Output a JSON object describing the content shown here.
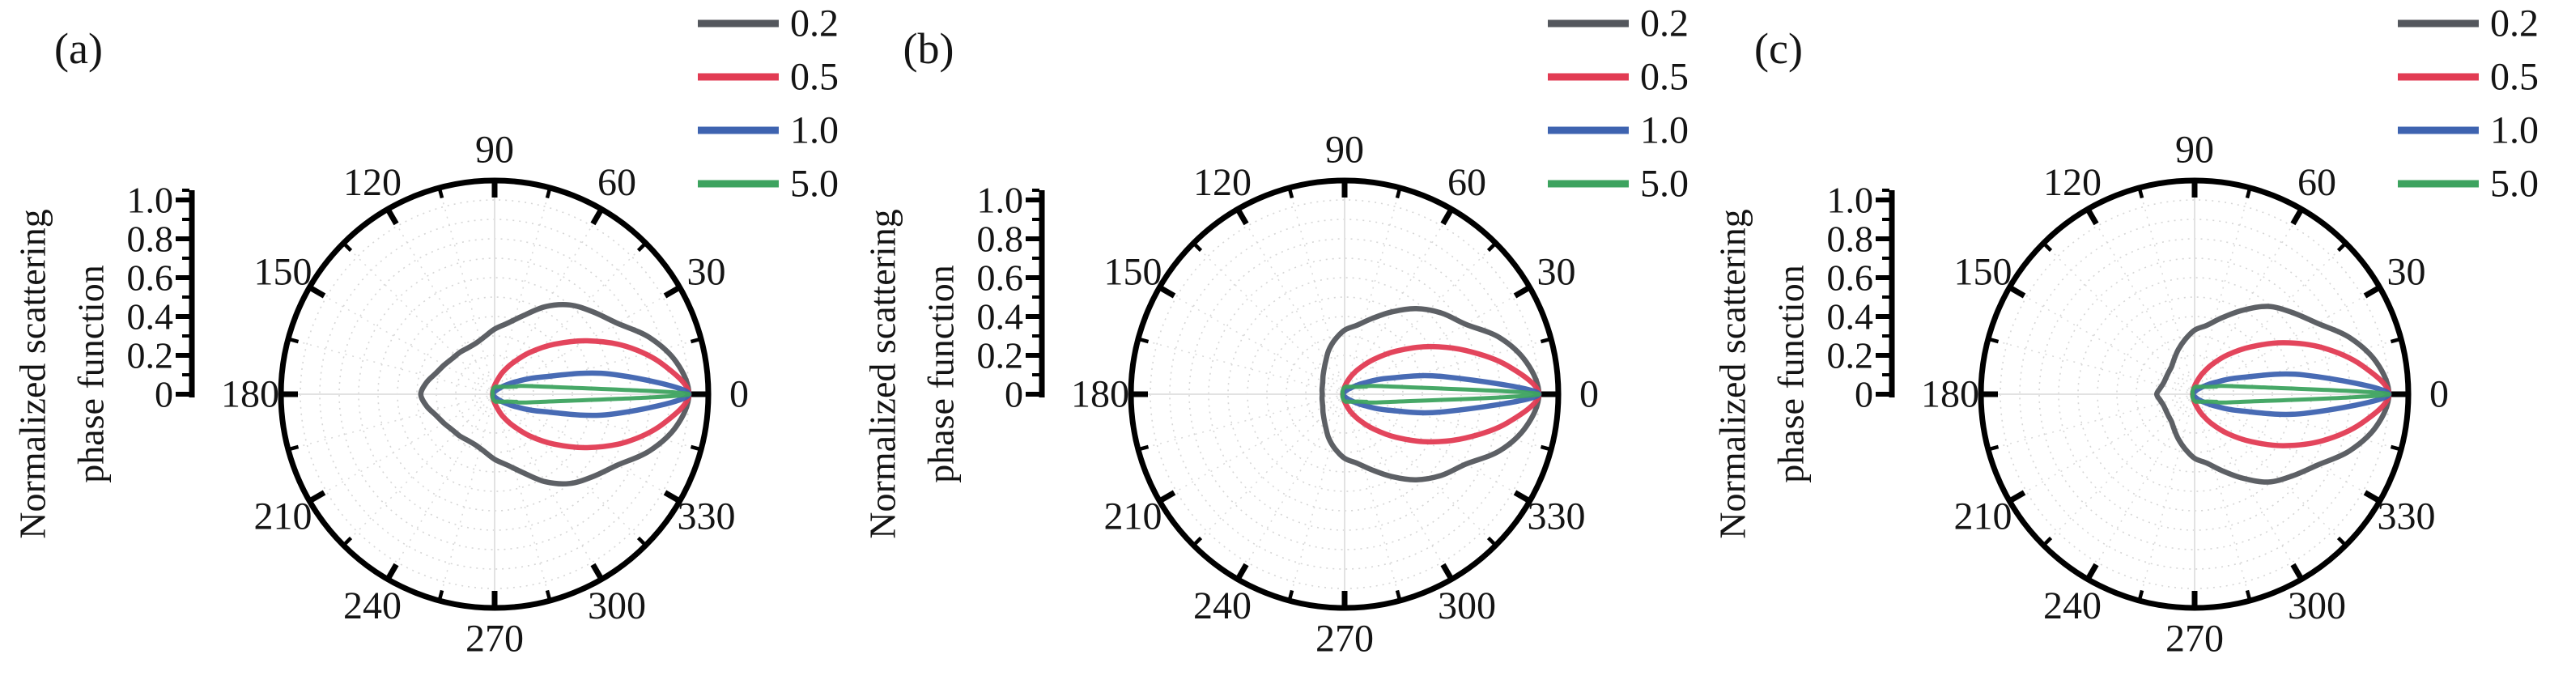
{
  "figure_title": "",
  "axis_title_line1": "Normalized scattering",
  "axis_title_line2": "phase function",
  "radial_axis": {
    "ticks": [
      "0",
      "0.2",
      "0.4",
      "0.6",
      "0.8",
      "1.0"
    ],
    "max": 1.0
  },
  "angular_tick_labels": [
    "0",
    "30",
    "60",
    "90",
    "120",
    "150",
    "180",
    "210",
    "240",
    "270",
    "300",
    "330"
  ],
  "legend": {
    "entries": [
      {
        "label": "0.2",
        "color": "#54575D"
      },
      {
        "label": "0.5",
        "color": "#E23B53"
      },
      {
        "label": "1.0",
        "color": "#3E63B0"
      },
      {
        "label": "5.0",
        "color": "#3DA35F"
      }
    ]
  },
  "chart_data": {
    "type": "line",
    "plot_style": "polar",
    "angle_unit": "degrees",
    "theta_samples_deg": [
      0,
      10,
      20,
      30,
      40,
      50,
      60,
      70,
      80,
      90,
      100,
      110,
      120,
      130,
      140,
      150,
      160,
      170,
      180
    ],
    "symmetric_about_0_180_axis": true,
    "radial_range": [
      0,
      1.0
    ],
    "grid": "on",
    "legend_position": "top-right",
    "ylabel": "Normalized scattering phase function",
    "panels": [
      {
        "label": "(a)",
        "series": [
          {
            "name": "0.2",
            "color": "#54575D",
            "r": [
              1.0,
              0.95,
              0.85,
              0.73,
              0.66,
              0.6,
              0.52,
              0.43,
              0.37,
              0.335,
              0.3,
              0.28,
              0.275,
              0.28,
              0.285,
              0.3,
              0.32,
              0.355,
              0.38
            ]
          },
          {
            "name": "0.5",
            "color": "#E23B53",
            "r": [
              1.0,
              0.88,
              0.72,
              0.55,
              0.4,
              0.28,
              0.185,
              0.12,
              0.07,
              0.045,
              0.03,
              0.022,
              0.018,
              0.015,
              0.013,
              0.012,
              0.011,
              0.01,
              0.01
            ]
          },
          {
            "name": "1.0",
            "color": "#3E63B0",
            "r": [
              1.0,
              0.6,
              0.26,
              0.13,
              0.07,
              0.042,
              0.028,
              0.02,
              0.016,
              0.014,
              0.012,
              0.011,
              0.01,
              0.009,
              0.009,
              0.008,
              0.008,
              0.008,
              0.008
            ]
          },
          {
            "name": "5.0",
            "color": "#3DA35F",
            "r": [
              1.0,
              0.23,
              0.115,
              0.075,
              0.06,
              0.05,
              0.045,
              0.04,
              0.04,
              0.035,
              0.03,
              0.025,
              0.02,
              0.018,
              0.015,
              0.012,
              0.01,
              0.01,
              0.01
            ]
          }
        ]
      },
      {
        "label": "(b)",
        "series": [
          {
            "name": "0.2",
            "color": "#54575D",
            "r": [
              1.0,
              0.95,
              0.85,
              0.72,
              0.65,
              0.575,
              0.49,
              0.415,
              0.36,
              0.33,
              0.285,
              0.24,
              0.195,
              0.165,
              0.145,
              0.13,
              0.122,
              0.118,
              0.115
            ]
          },
          {
            "name": "0.5",
            "color": "#E23B53",
            "r": [
              1.0,
              0.85,
              0.66,
              0.49,
              0.345,
              0.235,
              0.155,
              0.1,
              0.06,
              0.038,
              0.025,
              0.018,
              0.014,
              0.012,
              0.011,
              0.01,
              0.01,
              0.009,
              0.009
            ]
          },
          {
            "name": "1.0",
            "color": "#3E63B0",
            "r": [
              1.0,
              0.52,
              0.24,
              0.115,
              0.06,
              0.037,
              0.025,
              0.018,
              0.015,
              0.013,
              0.011,
              0.01,
              0.009,
              0.009,
              0.008,
              0.008,
              0.008,
              0.008,
              0.008
            ]
          },
          {
            "name": "5.0",
            "color": "#3DA35F",
            "r": [
              1.0,
              0.23,
              0.115,
              0.075,
              0.06,
              0.05,
              0.045,
              0.04,
              0.04,
              0.035,
              0.03,
              0.025,
              0.02,
              0.018,
              0.015,
              0.012,
              0.01,
              0.01,
              0.01
            ]
          }
        ]
      },
      {
        "label": "(c)",
        "series": [
          {
            "name": "0.2",
            "color": "#54575D",
            "r": [
              1.0,
              0.95,
              0.85,
              0.73,
              0.655,
              0.59,
              0.5,
              0.42,
              0.36,
              0.33,
              0.285,
              0.245,
              0.21,
              0.185,
              0.175,
              0.17,
              0.17,
              0.18,
              0.195
            ]
          },
          {
            "name": "0.5",
            "color": "#E23B53",
            "r": [
              1.0,
              0.87,
              0.7,
              0.53,
              0.38,
              0.265,
              0.175,
              0.11,
              0.065,
              0.042,
              0.028,
              0.02,
              0.016,
              0.013,
              0.012,
              0.011,
              0.01,
              0.01,
              0.01
            ]
          },
          {
            "name": "1.0",
            "color": "#3E63B0",
            "r": [
              1.0,
              0.57,
              0.25,
              0.12,
              0.065,
              0.04,
              0.027,
              0.019,
              0.015,
              0.013,
              0.011,
              0.01,
              0.009,
              0.009,
              0.008,
              0.008,
              0.008,
              0.008,
              0.008
            ]
          },
          {
            "name": "5.0",
            "color": "#3DA35F",
            "r": [
              1.0,
              0.23,
              0.115,
              0.075,
              0.06,
              0.05,
              0.045,
              0.04,
              0.04,
              0.035,
              0.03,
              0.025,
              0.02,
              0.018,
              0.015,
              0.012,
              0.01,
              0.01,
              0.01
            ]
          }
        ]
      }
    ]
  }
}
